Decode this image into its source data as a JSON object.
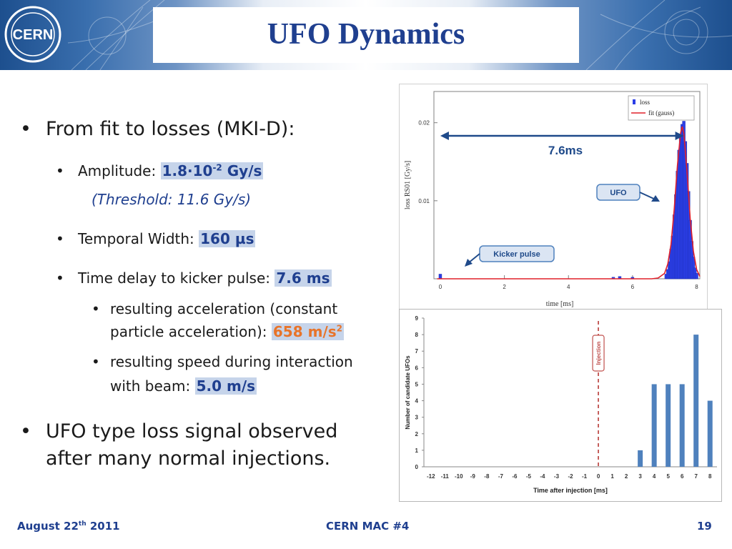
{
  "slide": {
    "title": "UFO Dynamics",
    "logo_text": "CERN",
    "bullets": {
      "b1": "From fit to losses (MKI-D):",
      "amp_label": "Amplitude:",
      "amp_value": "1.8·10",
      "amp_exp": "-2",
      "amp_unit": "Gy/s",
      "threshold": "(Threshold: 11.6 Gy/s)",
      "width_label": "Temporal Width:",
      "width_value": "160 µs",
      "delay_label": "Time delay to kicker pulse:",
      "delay_value": "7.6 ms",
      "accel_line1": "resulting acceleration (constant",
      "accel_line2": "particle acceleration):",
      "accel_value": "658 m/s",
      "accel_exp": "2",
      "speed_line1": "resulting speed during interaction",
      "speed_line2": "with beam:",
      "speed_value": "5.0 m/s",
      "b2_line1": "UFO type loss signal observed",
      "b2_line2": "after many normal injections."
    },
    "footer": {
      "date": "August 22",
      "date_sup": "th",
      "date_year": "2011",
      "center": "CERN MAC #4",
      "page": "19"
    }
  },
  "chart_data": [
    {
      "type": "line",
      "xlabel": "time [ms]",
      "ylabel": "loss RS01 [Gy/s]",
      "x_ticks": [
        "0",
        "2",
        "4",
        "6",
        "8"
      ],
      "y_ticks": [
        "0.01",
        "0.02"
      ],
      "xlim": [
        -0.2,
        8.1
      ],
      "ylim": [
        0,
        0.024
      ],
      "legend": [
        "loss",
        "fit (gauss)"
      ],
      "legend_position": "top-right",
      "annotations": {
        "delay": "7.6ms",
        "ufo": "UFO",
        "kicker": "Kicker pulse"
      },
      "series": [
        {
          "name": "loss",
          "type": "bar",
          "x": [
            0,
            5.4,
            5.6,
            6.0,
            7.05,
            7.1,
            7.15,
            7.2,
            7.25,
            7.3,
            7.35,
            7.4,
            7.45,
            7.5,
            7.55,
            7.6,
            7.65,
            7.7,
            7.75,
            7.8,
            7.85,
            7.9,
            7.95,
            8.0
          ],
          "y": [
            0.0006,
            0.0002,
            0.0003,
            0.0002,
            0.0006,
            0.0012,
            0.0022,
            0.0038,
            0.0055,
            0.0082,
            0.0108,
            0.0138,
            0.0165,
            0.0182,
            0.0198,
            0.0202,
            0.0176,
            0.0148,
            0.0112,
            0.0075,
            0.0048,
            0.0028,
            0.0014,
            0.0007
          ]
        },
        {
          "name": "fit (gauss)",
          "type": "line",
          "x": [
            -0.1,
            6.6,
            6.8,
            7.0,
            7.1,
            7.2,
            7.3,
            7.4,
            7.5,
            7.55,
            7.6,
            7.7,
            7.8,
            7.9,
            8.0,
            8.1
          ],
          "y": [
            0.0,
            0.0,
            0.0001,
            0.0007,
            0.0019,
            0.0044,
            0.0089,
            0.0145,
            0.0187,
            0.0195,
            0.0187,
            0.0137,
            0.0077,
            0.0035,
            0.0012,
            0.0003
          ]
        }
      ]
    },
    {
      "type": "bar",
      "xlabel": "Time after injection [ms]",
      "ylabel": "Number of candidate UFOs",
      "categories": [
        "-12",
        "-11",
        "-10",
        "-9",
        "-8",
        "-7",
        "-6",
        "-5",
        "-4",
        "-3",
        "-2",
        "-1",
        "0",
        "1",
        "2",
        "3",
        "4",
        "5",
        "6",
        "7",
        "8"
      ],
      "values": [
        0,
        0,
        0,
        0,
        0,
        0,
        0,
        0,
        0,
        0,
        0,
        0,
        0,
        0,
        0,
        1,
        5,
        5,
        5,
        8,
        4
      ],
      "ylim": [
        0,
        9
      ],
      "y_ticks": [
        "0",
        "1",
        "2",
        "3",
        "4",
        "5",
        "6",
        "7",
        "8",
        "9"
      ],
      "annotation": "Injection",
      "colors": {
        "bar": "#4f81bd",
        "injection": "#c0504d"
      }
    }
  ],
  "colors": {
    "title": "#1f3f8f",
    "accent": "#e8742a"
  }
}
